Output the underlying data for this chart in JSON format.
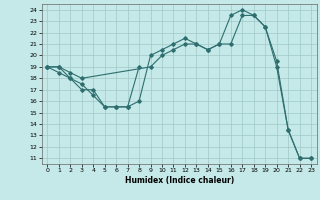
{
  "xlabel": "Humidex (Indice chaleur)",
  "bg_color": "#c5e8e8",
  "grid_color": "#a0c8c8",
  "line_color": "#2e6e6e",
  "xlim": [
    -0.5,
    23.5
  ],
  "ylim": [
    10.5,
    24.5
  ],
  "xticks": [
    0,
    1,
    2,
    3,
    4,
    5,
    6,
    7,
    8,
    9,
    10,
    11,
    12,
    13,
    14,
    15,
    16,
    17,
    18,
    19,
    20,
    21,
    22,
    23
  ],
  "yticks": [
    11,
    12,
    13,
    14,
    15,
    16,
    17,
    18,
    19,
    20,
    21,
    22,
    23,
    24
  ],
  "series1_x": [
    0,
    1,
    2,
    3,
    4,
    5,
    6,
    7,
    8,
    9,
    10,
    11,
    12,
    13,
    14,
    15,
    16,
    17,
    18,
    19,
    20,
    21,
    22,
    23
  ],
  "series1_y": [
    19,
    19,
    18,
    17,
    17,
    15.5,
    15.5,
    15.5,
    16,
    20,
    20.5,
    21,
    21.5,
    21,
    20.5,
    21,
    21,
    23.5,
    23.5,
    22.5,
    19,
    13.5,
    11,
    11
  ],
  "series2_x": [
    0,
    1,
    2,
    3,
    4,
    5,
    6,
    7,
    8
  ],
  "series2_y": [
    19,
    18.5,
    18,
    17.5,
    16.5,
    15.5,
    15.5,
    15.5,
    19
  ],
  "series3_x": [
    0,
    1,
    2,
    3,
    9,
    10,
    11,
    12,
    13,
    14,
    15,
    16,
    17,
    18,
    19,
    20,
    21,
    22,
    23
  ],
  "series3_y": [
    19,
    19,
    18.5,
    18,
    19,
    20,
    20.5,
    21,
    21,
    20.5,
    21,
    23.5,
    24,
    23.5,
    22.5,
    19.5,
    13.5,
    11,
    11
  ]
}
